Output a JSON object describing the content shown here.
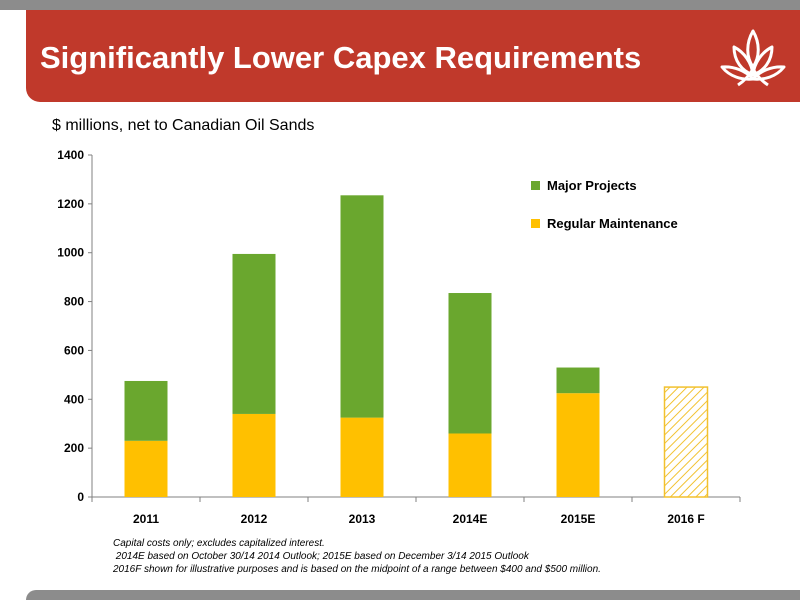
{
  "slide": {
    "title": "Significantly Lower Capex Requirements",
    "subtitle": "$ millions, net to Canadian Oil Sands"
  },
  "colors": {
    "banner": "#c0392b",
    "major_projects": "#6aa72e",
    "regular_maintenance": "#ffc000",
    "hatch": "#f2c12e"
  },
  "chart_data": {
    "type": "bar",
    "stacked": true,
    "categories": [
      "2011",
      "2012",
      "2013",
      "2014E",
      "2015E",
      "2016 F"
    ],
    "series": [
      {
        "name": "Regular Maintenance",
        "values": [
          230,
          340,
          325,
          260,
          425,
          null
        ]
      },
      {
        "name": "Major Projects",
        "values": [
          245,
          655,
          910,
          575,
          105,
          null
        ]
      }
    ],
    "illustrative": {
      "category": "2016 F",
      "value": 450,
      "style": "hatched"
    },
    "ylim": [
      0,
      1400
    ],
    "yticks": [
      0,
      200,
      400,
      600,
      800,
      1000,
      1200,
      1400
    ],
    "grid": false,
    "legend": {
      "position": "top-right",
      "entries": [
        "Major Projects",
        "Regular Maintenance"
      ]
    }
  },
  "footnotes": [
    "Capital costs only; excludes capitalized interest.",
    " 2014E based on October 30/14 2014 Outlook; 2015E based on December 3/14 2015 Outlook",
    "2016F shown for illustrative purposes and is based on the midpoint of a range between $400 and $500 million."
  ]
}
